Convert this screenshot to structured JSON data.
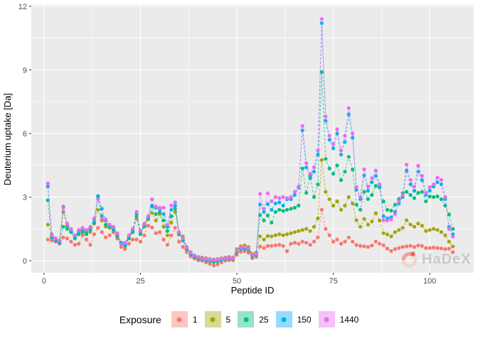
{
  "watermark": {
    "text": "HaDeX"
  },
  "legend": {
    "title": "Exposure"
  },
  "chart_data": {
    "type": "scatter",
    "title": "",
    "xlabel": "Peptide ID",
    "ylabel": "Deuterium uptake [Da]",
    "legend_title": "Exposure",
    "legend_position": "bottom",
    "grid": true,
    "panel_bg": "#EBEBEB",
    "grid_color": "#FFFFFF",
    "line_style": "dashed",
    "x_ticks": [
      0,
      25,
      50,
      75,
      100
    ],
    "y_ticks": [
      0,
      3,
      6,
      9,
      12
    ],
    "x_minor_ticks": [
      12.5,
      37.5,
      62.5,
      87.5
    ],
    "y_minor_ticks": [
      1.5,
      4.5,
      7.5,
      10.5
    ],
    "xlim": [
      -3.3,
      111.4
    ],
    "ylim": [
      -0.57,
      12.06
    ],
    "peptide_ids": {
      "from": 1,
      "to": 106
    },
    "series": [
      {
        "name": "1",
        "color": "#F8766D",
        "values": [
          1.0,
          0.95,
          0.9,
          0.8,
          1.1,
          1.05,
          0.9,
          0.75,
          0.8,
          1.2,
          1.0,
          0.75,
          1.25,
          1.55,
          1.35,
          1.1,
          1.2,
          1.35,
          1.05,
          0.65,
          0.55,
          0.8,
          1.0,
          1.0,
          0.9,
          1.2,
          1.65,
          1.57,
          1.3,
          1.35,
          1.0,
          0.75,
          1.2,
          1.55,
          0.9,
          0.65,
          0.4,
          0.2,
          0.1,
          0.02,
          0.0,
          -0.08,
          -0.15,
          -0.22,
          -0.18,
          -0.08,
          0.0,
          0.03,
          0.02,
          0.28,
          0.42,
          0.45,
          0.38,
          0.12,
          0.18,
          0.67,
          0.6,
          0.7,
          0.7,
          0.73,
          0.75,
          0.7,
          0.45,
          0.8,
          0.85,
          0.8,
          0.9,
          0.85,
          0.75,
          0.9,
          1.1,
          2.4,
          1.5,
          1.2,
          0.9,
          1.0,
          0.8,
          0.9,
          1.1,
          0.9,
          0.74,
          0.7,
          0.68,
          0.65,
          0.72,
          0.9,
          0.8,
          0.73,
          0.57,
          0.46,
          0.55,
          0.6,
          0.65,
          0.68,
          0.7,
          0.65,
          0.72,
          0.7,
          0.6,
          0.6,
          0.62,
          0.6,
          0.58,
          0.55,
          0.57,
          0.4
        ]
      },
      {
        "name": "5",
        "color": "#A3A500",
        "values": [
          1.7,
          1.25,
          1.05,
          0.95,
          2.3,
          1.6,
          1.4,
          1.1,
          1.3,
          1.45,
          1.3,
          1.35,
          1.75,
          2.4,
          1.9,
          1.6,
          1.55,
          1.5,
          1.2,
          0.85,
          0.75,
          1.1,
          1.4,
          2.0,
          1.3,
          1.6,
          1.95,
          2.25,
          1.9,
          2.2,
          1.6,
          1.2,
          1.8,
          2.3,
          1.3,
          1.15,
          0.65,
          0.4,
          0.25,
          0.18,
          0.15,
          0.12,
          0.08,
          0.06,
          0.08,
          0.12,
          0.15,
          0.18,
          0.15,
          0.55,
          0.68,
          0.72,
          0.65,
          0.32,
          0.38,
          1.15,
          1.0,
          1.17,
          1.15,
          1.2,
          1.25,
          1.2,
          1.25,
          1.3,
          1.35,
          1.4,
          1.45,
          1.5,
          1.4,
          1.6,
          2.0,
          4.75,
          3.25,
          2.9,
          2.6,
          2.8,
          2.4,
          2.6,
          3.0,
          2.7,
          1.91,
          1.6,
          1.97,
          1.7,
          1.85,
          2.24,
          1.9,
          1.3,
          1.24,
          1.15,
          1.35,
          1.45,
          1.55,
          1.91,
          1.7,
          1.6,
          1.75,
          1.65,
          1.4,
          1.45,
          1.5,
          1.45,
          1.35,
          1.2,
          0.9,
          0.67
        ]
      },
      {
        "name": "25",
        "color": "#00BF7D",
        "values": [
          2.85,
          1.1,
          0.95,
          0.85,
          1.6,
          1.5,
          1.35,
          1.05,
          1.25,
          1.35,
          1.25,
          1.45,
          1.8,
          3.05,
          2.1,
          1.7,
          1.6,
          1.45,
          1.15,
          0.8,
          0.7,
          1.05,
          1.35,
          2.1,
          1.25,
          1.65,
          2.0,
          2.55,
          2.2,
          2.3,
          1.9,
          1.4,
          2.1,
          2.45,
          1.25,
          0.95,
          0.55,
          0.3,
          0.18,
          0.1,
          0.08,
          0.03,
          -0.02,
          -0.06,
          -0.03,
          0.04,
          0.08,
          0.1,
          0.1,
          0.42,
          0.55,
          0.57,
          0.5,
          0.22,
          0.27,
          2.15,
          1.9,
          2.14,
          1.8,
          2.3,
          2.4,
          2.35,
          2.4,
          2.45,
          2.5,
          2.6,
          4.35,
          3.2,
          4.0,
          3.0,
          3.6,
          8.9,
          4.8,
          4.35,
          4.1,
          4.5,
          3.8,
          4.2,
          4.9,
          4.3,
          2.64,
          2.4,
          3.25,
          2.91,
          3.1,
          3.53,
          3.45,
          2.8,
          2.4,
          2.36,
          2.64,
          2.91,
          3.19,
          3.25,
          3.1,
          2.95,
          3.2,
          3.25,
          2.8,
          3.03,
          3.0,
          3.03,
          2.9,
          2.6,
          2.18,
          1.5
        ]
      },
      {
        "name": "150",
        "color": "#00B0F6",
        "values": [
          3.5,
          1.15,
          1.0,
          0.9,
          2.55,
          1.7,
          1.45,
          1.15,
          1.4,
          1.5,
          1.4,
          1.55,
          1.95,
          3.0,
          2.45,
          1.9,
          1.65,
          1.55,
          1.25,
          0.85,
          0.8,
          1.15,
          1.45,
          2.2,
          1.35,
          1.7,
          2.05,
          2.6,
          2.5,
          2.45,
          2.2,
          1.6,
          2.4,
          2.6,
          1.3,
          1.0,
          0.6,
          0.35,
          0.22,
          0.14,
          0.1,
          0.07,
          0.03,
          0.0,
          0.02,
          0.08,
          0.1,
          0.13,
          0.12,
          0.47,
          0.6,
          0.62,
          0.55,
          0.26,
          0.3,
          2.65,
          2.3,
          2.68,
          2.4,
          2.7,
          2.75,
          2.6,
          2.9,
          2.9,
          3.1,
          3.45,
          6.15,
          4.4,
          3.9,
          4.2,
          5.0,
          11.2,
          6.6,
          5.7,
          5.3,
          6.0,
          5.0,
          5.6,
          6.9,
          5.8,
          3.35,
          2.9,
          4.03,
          3.3,
          3.7,
          4.0,
          3.5,
          2.1,
          2.0,
          2.05,
          2.3,
          2.7,
          3.0,
          4.25,
          3.6,
          3.3,
          4.2,
          3.8,
          3.1,
          3.3,
          3.5,
          3.7,
          3.6,
          2.9,
          1.6,
          1.25
        ]
      },
      {
        "name": "1440",
        "color": "#E76BF3",
        "values": [
          3.65,
          1.2,
          1.05,
          0.95,
          2.5,
          1.75,
          1.5,
          1.2,
          1.45,
          1.55,
          1.45,
          1.6,
          2.0,
          2.9,
          2.0,
          1.95,
          1.7,
          1.6,
          1.3,
          0.75,
          0.85,
          1.2,
          1.5,
          2.3,
          1.4,
          1.75,
          2.1,
          2.9,
          2.55,
          2.5,
          2.5,
          1.7,
          2.6,
          2.75,
          1.35,
          1.05,
          0.62,
          0.38,
          0.25,
          0.16,
          0.12,
          0.1,
          0.06,
          0.04,
          0.05,
          0.1,
          0.12,
          0.15,
          0.13,
          0.5,
          0.62,
          0.65,
          0.57,
          0.28,
          0.33,
          3.15,
          2.45,
          3.18,
          2.8,
          3.0,
          2.95,
          3.0,
          2.95,
          3.0,
          3.25,
          3.5,
          6.35,
          4.6,
          4.1,
          4.4,
          5.2,
          11.4,
          6.8,
          5.9,
          5.5,
          6.2,
          5.2,
          5.9,
          7.2,
          6.0,
          3.47,
          3.0,
          4.31,
          3.5,
          3.9,
          4.25,
          3.6,
          1.91,
          1.9,
          1.95,
          2.2,
          2.8,
          3.1,
          4.53,
          3.81,
          3.5,
          4.48,
          4.0,
          3.2,
          3.47,
          3.6,
          3.92,
          3.81,
          3.0,
          1.5,
          1.14
        ]
      }
    ]
  }
}
